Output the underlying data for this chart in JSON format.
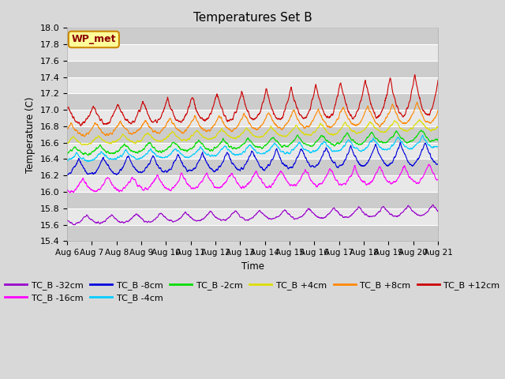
{
  "title": "Temperatures Set B",
  "xlabel": "Time",
  "ylabel": "Temperature (C)",
  "ylim": [
    15.4,
    18.0
  ],
  "background_color": "#d8d8d8",
  "plot_bg": "#e8e8e8",
  "series": [
    {
      "label": "TC_B -32cm",
      "color": "#9900cc",
      "base": 15.66,
      "amp": 0.1,
      "amp_grow": 0.002,
      "trend": 0.008,
      "phase": 2.5,
      "noise": 0.015
    },
    {
      "label": "TC_B -16cm",
      "color": "#ff00ff",
      "base": 16.08,
      "amp": 0.16,
      "amp_grow": 0.004,
      "trend": 0.01,
      "phase": 2.0,
      "noise": 0.025
    },
    {
      "label": "TC_B -8cm",
      "color": "#0000dd",
      "base": 16.3,
      "amp": 0.18,
      "amp_grow": 0.006,
      "trend": 0.012,
      "phase": 1.5,
      "noise": 0.025
    },
    {
      "label": "TC_B -4cm",
      "color": "#00ccff",
      "base": 16.42,
      "amp": 0.1,
      "amp_grow": 0.003,
      "trend": 0.013,
      "phase": 1.2,
      "noise": 0.02
    },
    {
      "label": "TC_B -2cm",
      "color": "#00dd00",
      "base": 16.5,
      "amp": 0.1,
      "amp_grow": 0.003,
      "trend": 0.013,
      "phase": 1.0,
      "noise": 0.02
    },
    {
      "label": "TC_B +4cm",
      "color": "#dddd00",
      "base": 16.62,
      "amp": 0.1,
      "amp_grow": 0.003,
      "trend": 0.014,
      "phase": 0.8,
      "noise": 0.018
    },
    {
      "label": "TC_B +8cm",
      "color": "#ff8800",
      "base": 16.75,
      "amp": 0.14,
      "amp_grow": 0.008,
      "trend": 0.015,
      "phase": 0.5,
      "noise": 0.022
    },
    {
      "label": "TC_B +12cm",
      "color": "#cc0000",
      "base": 16.92,
      "amp": 0.2,
      "amp_grow": 0.02,
      "trend": 0.018,
      "phase": 0.2,
      "noise": 0.03
    }
  ],
  "xtick_labels": [
    "Aug 6",
    "Aug 7",
    "Aug 8",
    "Aug 9",
    "Aug 10",
    "Aug 11",
    "Aug 12",
    "Aug 13",
    "Aug 14",
    "Aug 15",
    "Aug 16",
    "Aug 17",
    "Aug 18",
    "Aug 19",
    "Aug 20",
    "Aug 21"
  ],
  "legend_box_color": "#ffff99",
  "legend_box_edge": "#cc8800",
  "legend_text": "WP_met",
  "n_points": 2000
}
